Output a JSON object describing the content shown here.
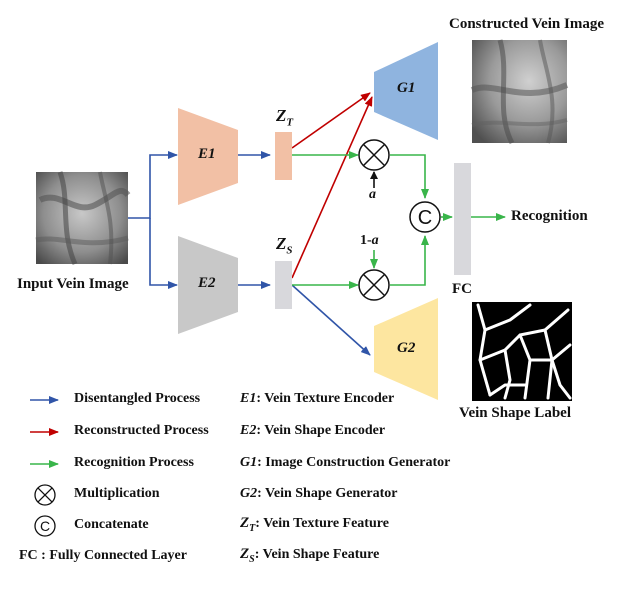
{
  "title_constructed": "Constructed Vein Image",
  "input_label": "Input Vein Image",
  "shape_label": "Vein Shape Label",
  "recognition": "Recognition",
  "fc": "FC",
  "a_label": "a",
  "one_minus_a": "1-",
  "one_minus_a_var": "a",
  "blocks": {
    "e1": "E1",
    "e2": "E2",
    "g1": "G1",
    "g2": "G2",
    "zt_main": "Z",
    "zt_sub": "T",
    "zs_main": "Z",
    "zs_sub": "S"
  },
  "concat_symbol": "C",
  "colors": {
    "e1": "#f2c0a5",
    "e2": "#c8c8c8",
    "g1": "#8fb4df",
    "g2": "#fde6a0",
    "zt": "#f2c0a5",
    "zs": "#d8d8dc",
    "fc": "#d8d8dc",
    "blue_arrow": "#3055a8",
    "red_arrow": "#c00000",
    "green_arrow": "#39b54a"
  },
  "legend": {
    "disentangled": "Disentangled Process",
    "reconstructed": "Reconstructed Process",
    "recognition": "Recognition Process",
    "multiplication": "Multiplication",
    "concatenate": "Concatenate",
    "fc_full": "FC : Fully Connected Layer",
    "e1_name": "E1",
    "e1_desc": ": Vein Texture Encoder",
    "e2_name": "E2",
    "e2_desc": ": Vein Shape Encoder",
    "g1_name": "G1",
    "g1_desc": ": Image Construction Generator",
    "g2_name": "G2",
    "g2_desc": ": Vein Shape Generator",
    "zt_main": "Z",
    "zt_sub": "T",
    "zt_desc": ": Vein Texture Feature",
    "zs_main": "Z",
    "zs_sub": "S",
    "zs_desc": ": Vein Shape Feature"
  }
}
